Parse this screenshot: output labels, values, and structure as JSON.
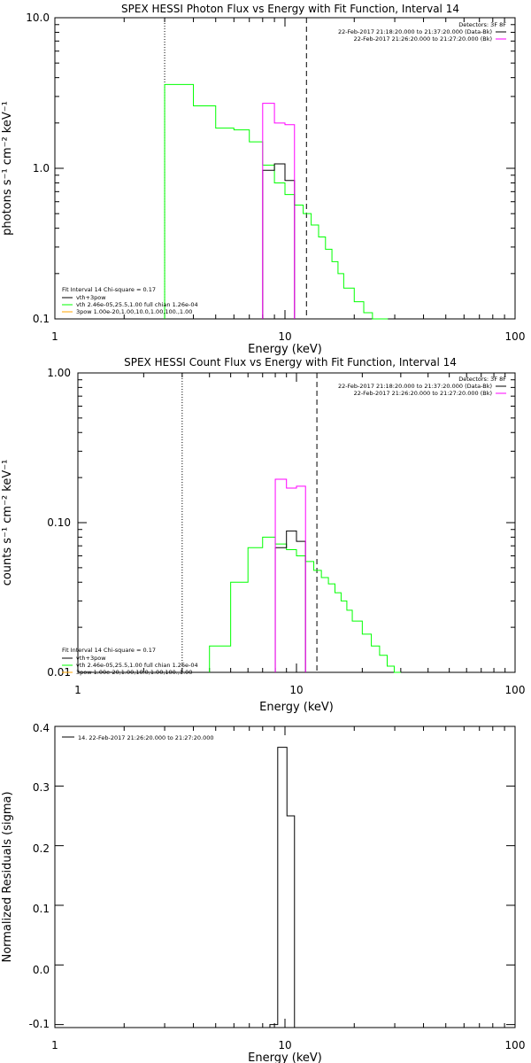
{
  "chart_data": [
    {
      "type": "line",
      "title": "SPEX HESSI Photon Flux vs Energy with Fit Function, Interval 14",
      "xlabel": "Energy (keV)",
      "ylabel": "photons s⁻¹ cm⁻² keV⁻¹",
      "xscale": "log",
      "yscale": "log",
      "xlim": [
        1,
        100
      ],
      "ylim": [
        0.1,
        10
      ],
      "x_ticks": [
        "1",
        "10",
        "100"
      ],
      "y_ticks": [
        "0.1",
        "1.0",
        "10.0"
      ],
      "dotted_line_x": 3,
      "dashed_line_x": 12.4,
      "legend_top_right": {
        "title": "Detectors: 3F 8F",
        "entries": [
          {
            "label": "22-Feb-2017 21:18:20.000 to 21:37:20.000 (Data-Bk)",
            "color": "#000000"
          },
          {
            "label": "22-Feb-2017 21:26:20.000 to 21:27:20.000 (Bk)",
            "color": "#ff00ff"
          }
        ]
      },
      "legend_bottom_left": {
        "title": "Fit Interval 14   Chi-square = 0.17",
        "entries": [
          {
            "label": "vth+3pow",
            "color": "#000000"
          },
          {
            "label": "vth 2.46e-05,25.5,1.00  full chian 1.26e-04",
            "color": "#00ff00"
          },
          {
            "label": "3pow 1.00e-20,1.00,10.0,1.00,100.,1.00",
            "color": "#ffa500"
          }
        ]
      },
      "series": [
        {
          "color": "#00ff00",
          "step_edges": [
            3,
            4,
            5,
            6,
            7,
            8,
            9,
            10,
            11,
            12,
            13,
            14,
            15,
            16,
            17,
            18,
            20,
            22,
            24,
            26,
            28
          ],
          "values": [
            3.6,
            2.6,
            1.85,
            1.8,
            1.5,
            1.05,
            0.8,
            0.67,
            0.57,
            0.5,
            0.42,
            0.35,
            0.29,
            0.24,
            0.2,
            0.16,
            0.13,
            0.11,
            0.095,
            0.09
          ]
        },
        {
          "color": "#000000",
          "step_edges": [
            8,
            9,
            10,
            11
          ],
          "values": [
            0.97,
            1.07,
            0.83
          ]
        },
        {
          "color": "#ff00ff",
          "step_edges": [
            8,
            9,
            10,
            11
          ],
          "values": [
            2.7,
            2.0,
            1.95
          ]
        }
      ]
    },
    {
      "type": "line",
      "title": "SPEX HESSI Count Flux vs Energy with Fit Function, Interval 14",
      "xlabel": "Energy (keV)",
      "ylabel": "counts s⁻¹ cm⁻² keV⁻¹",
      "xscale": "log",
      "yscale": "log",
      "xlim": [
        1,
        100
      ],
      "ylim": [
        0.01,
        1.0
      ],
      "x_ticks": [
        "1",
        "10",
        "100"
      ],
      "y_ticks": [
        "0.01",
        "0.10",
        "1.00"
      ],
      "dotted_line_x": 3,
      "dashed_line_x": 12.4,
      "legend_top_right": {
        "title": "Detectors: 3F 8F",
        "entries": [
          {
            "label": "22-Feb-2017 21:18:20.000 to 21:37:20.000 (Data-Bk)",
            "color": "#000000"
          },
          {
            "label": "22-Feb-2017 21:26:20.000 to 21:27:20.000 (Bk)",
            "color": "#ff00ff"
          }
        ]
      },
      "legend_bottom_left": {
        "title": "Fit Interval 14   Chi-square = 0.17",
        "entries": [
          {
            "label": "vth+3pow",
            "color": "#000000"
          },
          {
            "label": "vth 2.46e-05,25.5,1.00  full chian 1.26e-04",
            "color": "#00ff00"
          },
          {
            "label": "3pow 1.00e-20,1.00,10.0,1.00,100.,1.00",
            "color": "#ffa500"
          }
        ]
      },
      "series": [
        {
          "color": "#00ff00",
          "step_edges": [
            4,
            5,
            6,
            7,
            8,
            9,
            10,
            11,
            12,
            13,
            14,
            15,
            16,
            17,
            18,
            20,
            22,
            24,
            26,
            28,
            30
          ],
          "values": [
            0.015,
            0.04,
            0.068,
            0.08,
            0.072,
            0.066,
            0.06,
            0.055,
            0.048,
            0.043,
            0.039,
            0.034,
            0.03,
            0.026,
            0.022,
            0.018,
            0.015,
            0.013,
            0.011,
            0.01
          ]
        },
        {
          "color": "#000000",
          "step_edges": [
            8,
            9,
            10,
            11
          ],
          "values": [
            0.068,
            0.088,
            0.075
          ]
        },
        {
          "color": "#ff00ff",
          "step_edges": [
            8,
            9,
            10,
            11
          ],
          "values": [
            0.195,
            0.17,
            0.175
          ]
        }
      ]
    },
    {
      "type": "line",
      "title": "",
      "xlabel": "Energy (keV)",
      "ylabel": "Normalized Residuals (sigma)",
      "xscale": "log",
      "yscale": "linear",
      "xlim": [
        1,
        100
      ],
      "ylim": [
        -0.105,
        0.4
      ],
      "x_ticks": [
        "1",
        "10",
        "100"
      ],
      "y_ticks": [
        "-0.1",
        "0.0",
        "0.1",
        "0.2",
        "0.3",
        "0.4"
      ],
      "legend_top_left": {
        "entries": [
          {
            "label": "14. 22-Feb-2017 21:26:20.000 to 21:27:20.000",
            "color": "#000000"
          }
        ]
      },
      "series": [
        {
          "color": "#000000",
          "step_edges": [
            8.6,
            9.3,
            10.2,
            11
          ],
          "values": [
            -0.1,
            0.365,
            0.25
          ]
        }
      ]
    }
  ]
}
